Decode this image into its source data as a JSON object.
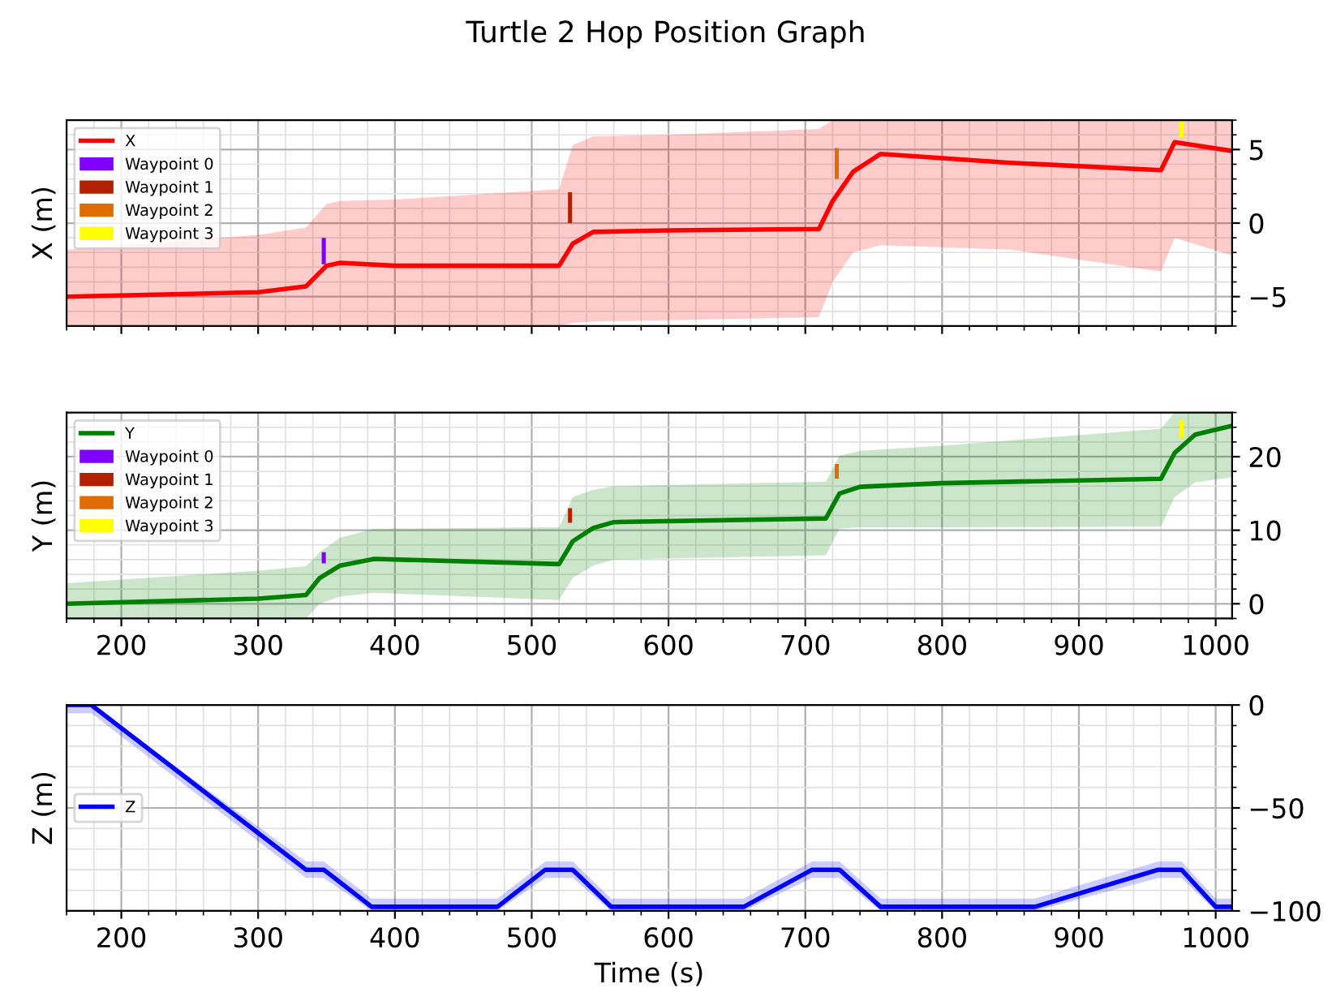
{
  "chart_data": [
    {
      "type": "line",
      "title": "Turtle 2 Hop Position Graph",
      "ylabel": "X (m)",
      "xlim": [
        160,
        1012
      ],
      "xticks": [
        200,
        300,
        400,
        500,
        600,
        700,
        800,
        900,
        1000
      ],
      "ylim": [
        -7,
        7
      ],
      "yticks": [
        {
          "value": -5,
          "label": "−5"
        },
        0,
        5
      ],
      "tick_labels": "y",
      "grid": true,
      "legend": "top left",
      "series": [
        {
          "name": "X",
          "color": "#ff0000",
          "x": [
            160,
            300,
            335,
            350,
            360,
            400,
            520,
            530,
            545,
            600,
            710,
            720,
            735,
            755,
            850,
            960,
            970,
            1012
          ],
          "values": [
            -5,
            -4.7,
            -4.3,
            -2.9,
            -2.7,
            -2.9,
            -2.9,
            -1.4,
            -0.6,
            -0.5,
            -0.4,
            1.5,
            3.5,
            4.7,
            4.1,
            3.6,
            5.5,
            4.9
          ],
          "lower": [
            -7,
            -7,
            -7,
            -7,
            -7,
            -7,
            -7,
            -6.8,
            -6.7,
            -6.6,
            -6.4,
            -4,
            -2,
            -1.5,
            -1.8,
            -3.3,
            -1.0,
            -2.2
          ],
          "upper": [
            -1.8,
            -0.8,
            -0.3,
            1.3,
            1.5,
            1.6,
            2.3,
            5.3,
            5.9,
            6.0,
            6.4,
            7,
            7,
            7,
            7,
            7,
            7,
            7
          ]
        },
        {
          "name": "Waypoint 0",
          "type": "bar",
          "color": "#8000ff",
          "x": [
            348
          ],
          "base": [
            -2.8
          ],
          "values": [
            1.8
          ]
        },
        {
          "name": "Waypoint 1",
          "type": "bar",
          "color": "#b22000",
          "x": [
            528
          ],
          "base": [
            0
          ],
          "values": [
            2.1
          ]
        },
        {
          "name": "Waypoint 2",
          "type": "bar",
          "color": "#e06c00",
          "x": [
            723
          ],
          "base": [
            3.0
          ],
          "values": [
            2.1
          ]
        },
        {
          "name": "Waypoint 3",
          "type": "bar",
          "color": "#ffff00",
          "x": [
            975
          ],
          "base": [
            5.8
          ],
          "values": [
            1.2
          ]
        }
      ]
    },
    {
      "type": "line",
      "ylabel": "Y (m)",
      "xlim": [
        160,
        1012
      ],
      "xticks": [
        200,
        300,
        400,
        500,
        600,
        700,
        800,
        900,
        1000
      ],
      "ylim": [
        -2,
        26
      ],
      "yticks": [
        0,
        10,
        20
      ],
      "grid": true,
      "legend": "top left",
      "series": [
        {
          "name": "Y",
          "color": "#008000",
          "x": [
            160,
            300,
            335,
            345,
            360,
            385,
            520,
            530,
            545,
            560,
            715,
            725,
            740,
            800,
            960,
            970,
            985,
            1012
          ],
          "values": [
            0,
            0.7,
            1.2,
            3.5,
            5.2,
            6.1,
            5.4,
            8.5,
            10.3,
            11.1,
            11.6,
            15.0,
            15.9,
            16.4,
            17.0,
            20.5,
            23,
            24.2
          ],
          "lower": [
            -2,
            -2,
            -2,
            0,
            1.0,
            1.5,
            0.5,
            3.5,
            5.2,
            6.0,
            6.6,
            10.2,
            10.4,
            10.4,
            10.5,
            14.5,
            16.5,
            17.2
          ],
          "upper": [
            2.8,
            4.5,
            5.1,
            7.0,
            9.0,
            10.2,
            10.4,
            14.5,
            15.5,
            16.0,
            16.6,
            20.1,
            20.8,
            21.5,
            23.8,
            26,
            26,
            26
          ]
        },
        {
          "name": "Waypoint 0",
          "type": "bar",
          "color": "#8000ff",
          "x": [
            348
          ],
          "base": [
            5.5
          ],
          "values": [
            1.5
          ]
        },
        {
          "name": "Waypoint 1",
          "type": "bar",
          "color": "#b22000",
          "x": [
            528
          ],
          "base": [
            11
          ],
          "values": [
            2
          ]
        },
        {
          "name": "Waypoint 2",
          "type": "bar",
          "color": "#e06c00",
          "x": [
            723
          ],
          "base": [
            17
          ],
          "values": [
            2
          ]
        },
        {
          "name": "Waypoint 3",
          "type": "bar",
          "color": "#ffff00",
          "x": [
            975
          ],
          "base": [
            22.5
          ],
          "values": [
            2.5
          ]
        }
      ]
    },
    {
      "type": "line",
      "ylabel": "Z (m)",
      "xlabel": "Time (s)",
      "xlim": [
        160,
        1012
      ],
      "xticks": [
        200,
        300,
        400,
        500,
        600,
        700,
        800,
        900,
        1000
      ],
      "ylim": [
        -100,
        0
      ],
      "yticks": [
        {
          "value": -100,
          "label": "−100"
        },
        {
          "value": -50,
          "label": "−50"
        },
        0
      ],
      "grid": true,
      "legend": "left",
      "series": [
        {
          "name": "Z",
          "color": "#0000ff",
          "x": [
            160,
            178,
            335,
            348,
            383,
            475,
            510,
            530,
            558,
            655,
            705,
            725,
            755,
            868,
            958,
            975,
            1000,
            1012
          ],
          "values": [
            0,
            0,
            -80,
            -80,
            -98,
            -98,
            -80,
            -80,
            -98,
            -98,
            -80,
            -80,
            -98,
            -98,
            -80,
            -80,
            -98,
            -98
          ],
          "lower": [
            -4,
            -4,
            -84,
            -84,
            -100,
            -100,
            -84,
            -84,
            -100,
            -100,
            -84,
            -84,
            -100,
            -100,
            -84,
            -84,
            -100,
            -100
          ],
          "upper": [
            0,
            0,
            -76,
            -76,
            -94,
            -94,
            -76,
            -76,
            -94,
            -94,
            -76,
            -76,
            -94,
            -94,
            -76,
            -76,
            -94,
            -94
          ]
        }
      ]
    }
  ]
}
